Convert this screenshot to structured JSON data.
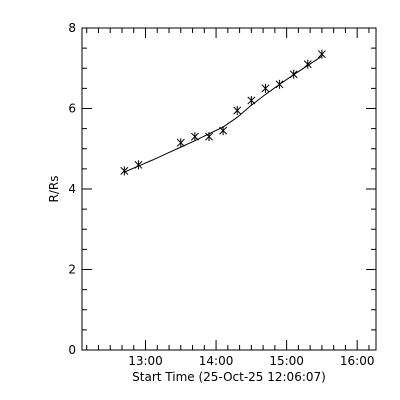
{
  "chart_data": {
    "type": "scatter",
    "title": "",
    "xlabel": "Start Time (25-Oct-25 12:06:07)",
    "ylabel": "R/Rs",
    "x_unit": "HH:MM",
    "xlim": [
      "12:06",
      "16:16"
    ],
    "ylim": [
      0,
      8
    ],
    "x_ticks": [
      "13:00",
      "14:00",
      "15:00",
      "16:00"
    ],
    "y_ticks": [
      0,
      2,
      4,
      6,
      8
    ],
    "grid": false,
    "legend": "none",
    "series": [
      {
        "marker": "asterisk",
        "x": [
          "12:42",
          "12:54",
          "13:30",
          "13:42",
          "13:54",
          "14:06",
          "14:18",
          "14:30",
          "14:42",
          "14:54",
          "15:06",
          "15:18",
          "15:30"
        ],
        "y": [
          4.45,
          4.6,
          5.15,
          5.3,
          5.3,
          5.45,
          5.95,
          6.2,
          6.5,
          6.6,
          6.85,
          7.1,
          7.35
        ]
      }
    ],
    "fit": {
      "style": "solid-line",
      "x": [
        "12:42",
        "12:54",
        "13:06",
        "13:18",
        "13:30",
        "13:42",
        "13:54",
        "14:06",
        "14:18",
        "14:30",
        "14:42",
        "14:54",
        "15:06",
        "15:18",
        "15:30"
      ],
      "y": [
        4.42,
        4.57,
        4.72,
        4.88,
        5.04,
        5.2,
        5.37,
        5.54,
        5.78,
        6.08,
        6.35,
        6.6,
        6.84,
        7.07,
        7.3
      ]
    },
    "colors": {
      "axis": "#000000",
      "marker": "#000000",
      "line": "#000000",
      "background": "#ffffff"
    }
  }
}
